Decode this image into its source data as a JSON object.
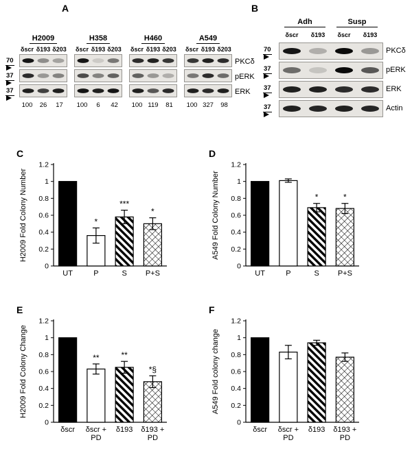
{
  "panels": {
    "A": {
      "label": "A",
      "lane_labels": [
        "δscr",
        "δ193",
        "δ203"
      ],
      "row_labels": [
        "PKCδ",
        "pERK",
        "ERK"
      ],
      "mw_markers": [
        "70",
        "37",
        "37"
      ],
      "blots": [
        {
          "cell_line": "H2009",
          "quant": [
            "100",
            "26",
            "17"
          ],
          "band_intensities": [
            [
              0.95,
              0.4,
              0.3
            ],
            [
              0.85,
              0.35,
              0.45
            ],
            [
              0.9,
              0.75,
              0.9
            ]
          ]
        },
        {
          "cell_line": "H358",
          "quant": [
            "100",
            "6",
            "42"
          ],
          "band_intensities": [
            [
              0.95,
              0.12,
              0.5
            ],
            [
              0.7,
              0.45,
              0.6
            ],
            [
              0.95,
              0.9,
              0.95
            ]
          ]
        },
        {
          "cell_line": "H460",
          "quant": [
            "100",
            "119",
            "81"
          ],
          "band_intensities": [
            [
              0.85,
              0.9,
              0.8
            ],
            [
              0.6,
              0.35,
              0.25
            ],
            [
              0.9,
              0.65,
              0.85
            ]
          ]
        },
        {
          "cell_line": "A549",
          "quant": [
            "100",
            "327",
            "98"
          ],
          "band_intensities": [
            [
              0.8,
              0.9,
              0.85
            ],
            [
              0.5,
              0.85,
              0.55
            ],
            [
              0.9,
              0.85,
              0.9
            ]
          ]
        }
      ]
    },
    "B": {
      "label": "B",
      "group_labels": [
        "Adh",
        "Susp"
      ],
      "lane_labels": [
        "δscr",
        "δ193",
        "δscr",
        "δ193"
      ],
      "row_labels": [
        "PKCδ",
        "pERK",
        "ERK",
        "Actin"
      ],
      "mw_markers": [
        "70",
        "37",
        "37",
        "37"
      ],
      "band_intensities": [
        [
          0.95,
          0.25,
          1.0,
          0.35
        ],
        [
          0.55,
          0.15,
          1.0,
          0.65
        ],
        [
          0.9,
          0.9,
          0.85,
          0.85
        ],
        [
          0.9,
          0.88,
          0.9,
          0.88
        ]
      ]
    }
  },
  "chart_data": [
    {
      "panel": "C",
      "type": "bar",
      "ylabel": "H2009 Fold Colony Number",
      "ylim": [
        0,
        1.2
      ],
      "ytick_labels": [
        "0",
        "0.2",
        "0.4",
        "0.6",
        "0.8",
        "1",
        "1.2"
      ],
      "categories": [
        [
          "UT"
        ],
        [
          "P"
        ],
        [
          "S"
        ],
        [
          "P+S"
        ]
      ],
      "values": [
        1.0,
        0.36,
        0.58,
        0.5
      ],
      "errors": [
        0,
        0.09,
        0.08,
        0.07
      ],
      "sig": [
        "",
        "*",
        "***",
        "*"
      ],
      "styles": [
        "solid",
        "open",
        "diag",
        "cross"
      ]
    },
    {
      "panel": "D",
      "type": "bar",
      "ylabel": "A549 Fold Colony Number",
      "ylim": [
        0,
        1.2
      ],
      "ytick_labels": [
        "0",
        "0.2",
        "0.4",
        "0.6",
        "0.8",
        "1",
        "1.2"
      ],
      "categories": [
        [
          "UT"
        ],
        [
          "P"
        ],
        [
          "S"
        ],
        [
          "P+S"
        ]
      ],
      "values": [
        1.0,
        1.01,
        0.69,
        0.68
      ],
      "errors": [
        0,
        0.02,
        0.05,
        0.06
      ],
      "sig": [
        "",
        "",
        "*",
        "*"
      ],
      "styles": [
        "solid",
        "open",
        "diag",
        "cross"
      ]
    },
    {
      "panel": "E",
      "type": "bar",
      "ylabel": "H2009 Fold Colony Change",
      "ylim": [
        0,
        1.2
      ],
      "ytick_labels": [
        "0",
        "0.2",
        "0.4",
        "0.6",
        "0.8",
        "1",
        "1.2"
      ],
      "categories": [
        [
          "δscr"
        ],
        [
          "δscr +",
          "PD"
        ],
        [
          "δ193"
        ],
        [
          "δ193 +",
          "PD"
        ]
      ],
      "values": [
        1.0,
        0.63,
        0.65,
        0.48
      ],
      "errors": [
        0,
        0.06,
        0.07,
        0.07
      ],
      "sig": [
        "",
        "**",
        "**",
        "*§"
      ],
      "styles": [
        "solid",
        "open",
        "diag",
        "cross"
      ]
    },
    {
      "panel": "F",
      "type": "bar",
      "ylabel": "A549 Fold colony change",
      "ylim": [
        0,
        1.2
      ],
      "ytick_labels": [
        "0",
        "0.2",
        "0.4",
        "0.6",
        "0.8",
        "1",
        "1.2"
      ],
      "categories": [
        [
          "δscr"
        ],
        [
          "δscr +",
          "PD"
        ],
        [
          "δ193"
        ],
        [
          "δ193 +",
          "PD"
        ]
      ],
      "values": [
        1.0,
        0.83,
        0.94,
        0.77
      ],
      "errors": [
        0,
        0.08,
        0.03,
        0.05
      ],
      "sig": [
        "",
        "",
        "",
        ""
      ],
      "styles": [
        "solid",
        "open",
        "diag",
        "cross"
      ]
    }
  ]
}
